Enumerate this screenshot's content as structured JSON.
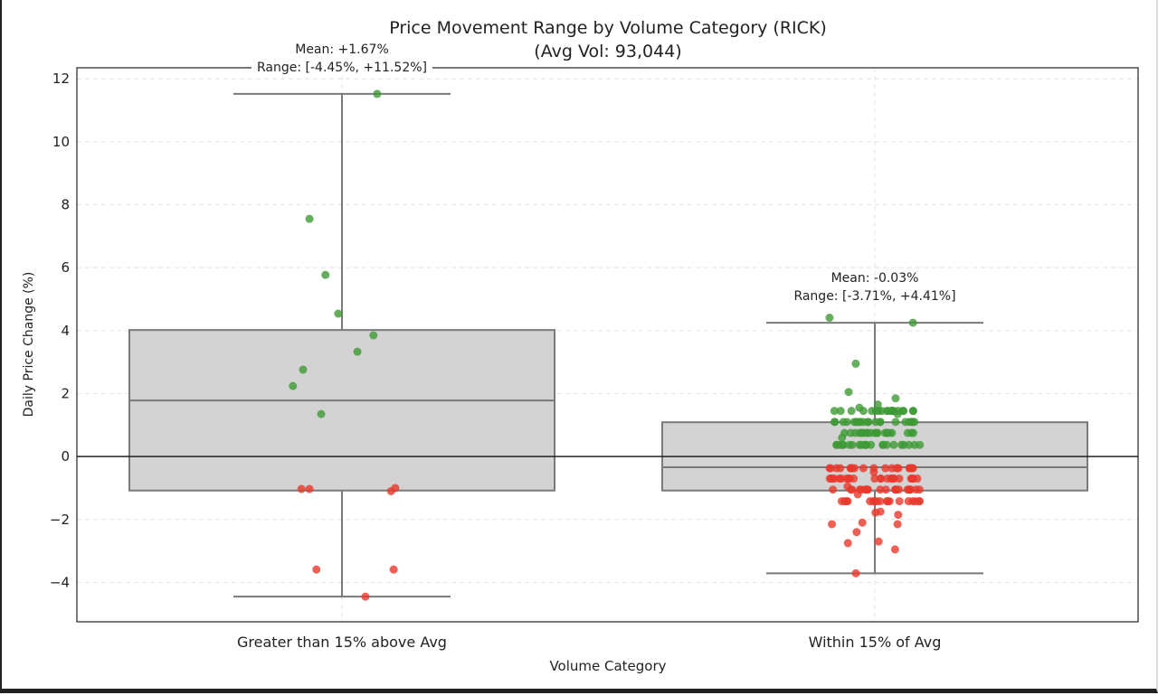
{
  "chart_data": {
    "type": "box",
    "title": "Price Movement Range by Volume Category (RICK)",
    "subtitle": "(Avg Vol: 93,044)",
    "xlabel": "Volume Category",
    "ylabel": "Daily Price Change (%)",
    "ylim": [
      -5.25,
      12.35
    ],
    "yticks": [
      -4,
      -2,
      0,
      2,
      4,
      6,
      8,
      10,
      12
    ],
    "grid": true,
    "reference_line_y": 0,
    "colors": {
      "box_fill": "#d3d3d3",
      "box_edge": "#7a7a7a",
      "up": "#3d9a35",
      "down": "#e8382c",
      "zero_line": "#222222"
    },
    "categories": [
      "Greater than 15% above Avg",
      "Within 15% of Avg"
    ],
    "boxes": [
      {
        "q1": -1.08,
        "median": 1.78,
        "q3": 4.02,
        "whisker_low": -4.45,
        "whisker_high": 11.52,
        "annotation": [
          "Mean: +1.67%",
          "Range: [-4.45%, +11.52%]"
        ],
        "points": [
          {
            "y": 11.52,
            "jitter": 0.066
          },
          {
            "y": 7.55,
            "jitter": -0.061
          },
          {
            "y": 5.77,
            "jitter": -0.031
          },
          {
            "y": 4.54,
            "jitter": -0.007
          },
          {
            "y": 3.85,
            "jitter": 0.059
          },
          {
            "y": 3.33,
            "jitter": 0.029
          },
          {
            "y": 2.76,
            "jitter": -0.073
          },
          {
            "y": 2.24,
            "jitter": -0.092
          },
          {
            "y": 1.35,
            "jitter": -0.039
          },
          {
            "y": -1.03,
            "jitter": -0.076
          },
          {
            "y": -1.03,
            "jitter": -0.061
          },
          {
            "y": -1.1,
            "jitter": 0.092
          },
          {
            "y": -1.0,
            "jitter": 0.1
          },
          {
            "y": -3.59,
            "jitter": -0.048
          },
          {
            "y": -3.59,
            "jitter": 0.097
          },
          {
            "y": -4.45,
            "jitter": 0.044
          }
        ]
      },
      {
        "q1": -1.08,
        "median": -0.34,
        "q3": 1.09,
        "whisker_low": -3.71,
        "whisker_high": 4.25,
        "annotation": [
          "Mean: -0.03%",
          "Range: [-3.71%, +4.41%]"
        ],
        "points_y": [
          4.41,
          4.25,
          2.95,
          2.05,
          1.85,
          1.65,
          1.55,
          1.35,
          1.45,
          1.45,
          1.45,
          1.45,
          1.45,
          1.45,
          1.45,
          1.45,
          1.45,
          1.45,
          1.45,
          1.45,
          1.45,
          1.45,
          1.45,
          1.45,
          1.45,
          1.45,
          1.45,
          1.45,
          1.1,
          1.1,
          1.1,
          1.1,
          1.1,
          1.1,
          1.1,
          1.1,
          1.1,
          1.1,
          1.1,
          1.1,
          1.1,
          1.1,
          1.1,
          1.1,
          1.1,
          1.1,
          1.1,
          1.1,
          1.1,
          1.1,
          0.75,
          0.75,
          0.75,
          0.75,
          0.75,
          0.75,
          0.75,
          0.75,
          0.75,
          0.75,
          0.75,
          0.75,
          0.75,
          0.75,
          0.75,
          0.75,
          0.75,
          0.75,
          0.75,
          0.75,
          0.75,
          0.75,
          0.37,
          0.37,
          0.37,
          0.37,
          0.37,
          0.37,
          0.37,
          0.37,
          0.37,
          0.37,
          0.37,
          0.37,
          0.37,
          0.37,
          0.37,
          0.37,
          0.37,
          0.37,
          0.37,
          0.37,
          0.37,
          0.37,
          0.6,
          -0.37,
          -0.37,
          -0.37,
          -0.37,
          -0.37,
          -0.37,
          -0.37,
          -0.37,
          -0.37,
          -0.37,
          -0.37,
          -0.37,
          -0.37,
          -0.37,
          -0.37,
          -0.37,
          -0.37,
          -0.37,
          -0.37,
          -0.37,
          -0.37,
          -0.37,
          -0.5,
          -0.7,
          -0.7,
          -0.7,
          -0.7,
          -0.7,
          -0.7,
          -0.7,
          -0.7,
          -0.7,
          -0.7,
          -0.7,
          -0.7,
          -0.7,
          -0.7,
          -0.7,
          -0.7,
          -0.7,
          -0.7,
          -0.7,
          -0.7,
          -0.7,
          -0.7,
          -0.7,
          -0.7,
          -1.05,
          -1.05,
          -1.05,
          -1.05,
          -1.05,
          -1.05,
          -1.05,
          -1.05,
          -1.05,
          -1.05,
          -1.05,
          -1.05,
          -1.05,
          -1.05,
          -1.05,
          -1.05,
          -1.05,
          -1.05,
          -1.05,
          -1.05,
          -1.05,
          -1.05,
          -0.95,
          -1.2,
          -1.42,
          -1.42,
          -1.42,
          -1.42,
          -1.42,
          -1.42,
          -1.42,
          -1.42,
          -1.42,
          -1.42,
          -1.42,
          -1.42,
          -1.42,
          -1.42,
          -1.42,
          -1.42,
          -1.42,
          -1.42,
          -1.75,
          -1.78,
          -1.85,
          -2.1,
          -2.15,
          -2.15,
          -2.4,
          -2.7,
          -2.75,
          -2.95,
          -3.71
        ]
      }
    ]
  }
}
